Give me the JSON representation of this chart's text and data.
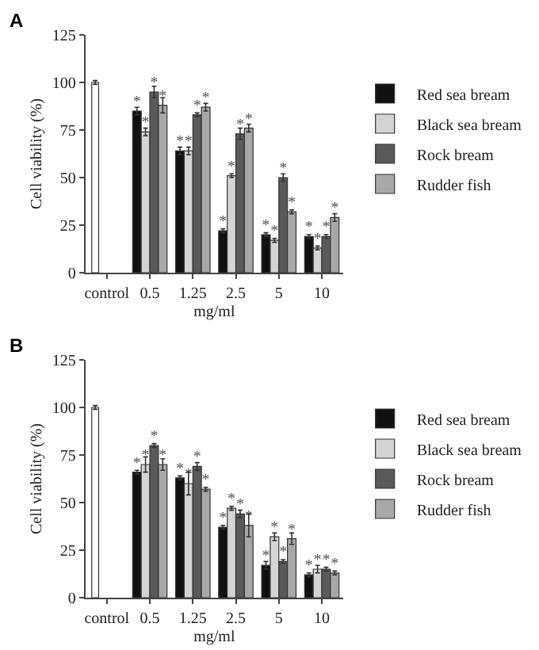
{
  "chart_data": [
    {
      "type": "bar",
      "title": "A",
      "xlabel": "mg/ml",
      "ylabel": "Cell viability (%)",
      "categories": [
        "control",
        "0.5",
        "1.25",
        "2.5",
        "5",
        "10"
      ],
      "ylim": [
        0,
        125
      ],
      "yticks": [
        0,
        25,
        50,
        75,
        100,
        125
      ],
      "legend": "right",
      "series": [
        {
          "color": "#ffffff",
          "values": [
            100,
            null,
            null,
            null,
            null,
            null
          ],
          "errors": [
            1,
            null,
            null,
            null,
            null,
            null
          ]
        },
        {
          "name": "Red sea bream",
          "color": "#111111",
          "values": [
            null,
            85,
            64,
            22,
            20,
            19
          ],
          "errors": [
            null,
            2,
            2,
            1,
            1,
            1
          ],
          "value_labels": [
            null,
            "*",
            "*",
            "*",
            "*",
            "*"
          ]
        },
        {
          "name": "Black sea bream",
          "color": "#d4d4d4",
          "values": [
            null,
            74,
            64,
            51,
            17,
            13
          ],
          "errors": [
            null,
            2,
            2,
            1,
            1,
            1
          ],
          "value_labels": [
            null,
            "*",
            "*",
            "*",
            "*",
            "*"
          ]
        },
        {
          "name": "Rock bream",
          "color": "#5a5a5a",
          "values": [
            null,
            95,
            83,
            73,
            50,
            19
          ],
          "errors": [
            null,
            3,
            1,
            3,
            2,
            1
          ],
          "value_labels": [
            null,
            "*",
            "*",
            "*",
            "*",
            "*"
          ]
        },
        {
          "name": "Rudder fish",
          "color": "#a8a8a8",
          "values": [
            null,
            88,
            87,
            76,
            32,
            29
          ],
          "errors": [
            null,
            4,
            2,
            2,
            1,
            2
          ],
          "value_labels": [
            null,
            "*",
            "*",
            "*",
            "*",
            "*"
          ]
        }
      ]
    },
    {
      "type": "bar",
      "title": "B",
      "xlabel": "mg/ml",
      "ylabel": "Cell viability (%)",
      "categories": [
        "control",
        "0.5",
        "1.25",
        "2.5",
        "5",
        "10"
      ],
      "ylim": [
        0,
        125
      ],
      "yticks": [
        0,
        25,
        50,
        75,
        100,
        125
      ],
      "legend": "right",
      "series": [
        {
          "color": "#ffffff",
          "values": [
            100,
            null,
            null,
            null,
            null,
            null
          ],
          "errors": [
            1,
            null,
            null,
            null,
            null,
            null
          ]
        },
        {
          "name": "Red sea bream",
          "color": "#111111",
          "values": [
            null,
            66,
            63,
            37,
            17,
            12
          ],
          "errors": [
            null,
            1,
            1,
            1,
            2,
            1
          ],
          "value_labels": [
            null,
            "*",
            "*",
            "*",
            "*",
            "*"
          ]
        },
        {
          "name": "Black sea bream",
          "color": "#d4d4d4",
          "values": [
            null,
            70,
            60,
            47,
            32,
            15
          ],
          "errors": [
            null,
            4,
            6,
            1,
            2,
            2
          ],
          "value_labels": [
            null,
            "*",
            "*",
            "*",
            "*",
            "*"
          ]
        },
        {
          "name": "Rock bream",
          "color": "#5a5a5a",
          "values": [
            null,
            80,
            69,
            44,
            19,
            15
          ],
          "errors": [
            null,
            1,
            2,
            2,
            1,
            1
          ],
          "value_labels": [
            null,
            "*",
            "*",
            "*",
            "*",
            "*"
          ]
        },
        {
          "name": "Rudder fish",
          "color": "#a8a8a8",
          "values": [
            null,
            70,
            57,
            38,
            31,
            13
          ],
          "errors": [
            null,
            3,
            1,
            6,
            3,
            1
          ],
          "value_labels": [
            null,
            "*",
            "*",
            "*",
            "*",
            "*"
          ]
        }
      ]
    }
  ]
}
